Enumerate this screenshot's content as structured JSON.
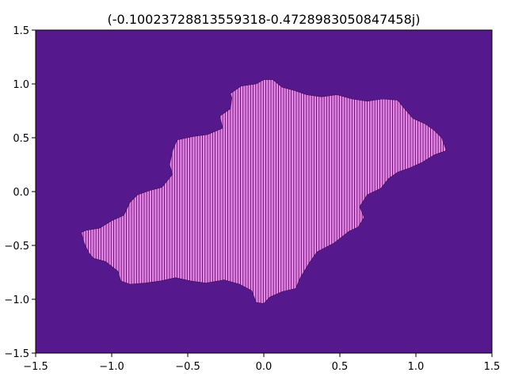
{
  "chart_data": {
    "type": "heatmap",
    "subtype": "julia-set-escape-plot",
    "title": "(-0.10023728813559318-0.4728983050847458j)",
    "xlabel": "",
    "ylabel": "",
    "xlim": [
      -1.5,
      1.5
    ],
    "ylim": [
      -1.5,
      1.5
    ],
    "xticks": [
      -1.5,
      -1.0,
      -0.5,
      0.0,
      0.5,
      1.0,
      1.5
    ],
    "yticks": [
      -1.5,
      -1.0,
      -0.5,
      0.0,
      0.5,
      1.0,
      1.5
    ],
    "xtick_labels": [
      "−1.5",
      "−1.0",
      "−0.5",
      "0.0",
      "0.5",
      "1.0",
      "1.5"
    ],
    "ytick_labels": [
      "−1.5",
      "−1.0",
      "−0.5",
      "0.0",
      "0.5",
      "1.0",
      "1.5"
    ],
    "grid": false,
    "colors": {
      "background": "#56198d",
      "filled_set": "#ee82ee",
      "stripe": "#3a0f4a"
    },
    "set_boundary": [
      [
        -1.2,
        -0.38
      ],
      [
        -1.17,
        -0.36
      ],
      [
        -1.08,
        -0.34
      ],
      [
        -1.0,
        -0.27
      ],
      [
        -0.92,
        -0.22
      ],
      [
        -0.88,
        -0.1
      ],
      [
        -0.83,
        -0.03
      ],
      [
        -0.75,
        0.01
      ],
      [
        -0.67,
        0.04
      ],
      [
        -0.6,
        0.16
      ],
      [
        -0.62,
        0.25
      ],
      [
        -0.6,
        0.38
      ],
      [
        -0.57,
        0.48
      ],
      [
        -0.47,
        0.51
      ],
      [
        -0.37,
        0.53
      ],
      [
        -0.27,
        0.59
      ],
      [
        -0.29,
        0.7
      ],
      [
        -0.22,
        0.77
      ],
      [
        -0.21,
        0.87
      ],
      [
        -0.22,
        0.91
      ],
      [
        -0.15,
        0.98
      ],
      [
        -0.05,
        1.0
      ],
      [
        0.0,
        1.04
      ],
      [
        0.06,
        1.04
      ],
      [
        0.12,
        0.97
      ],
      [
        0.2,
        0.94
      ],
      [
        0.28,
        0.9
      ],
      [
        0.38,
        0.88
      ],
      [
        0.48,
        0.9
      ],
      [
        0.58,
        0.86
      ],
      [
        0.68,
        0.84
      ],
      [
        0.78,
        0.86
      ],
      [
        0.88,
        0.85
      ],
      [
        0.92,
        0.78
      ],
      [
        0.98,
        0.68
      ],
      [
        1.06,
        0.63
      ],
      [
        1.12,
        0.57
      ],
      [
        1.17,
        0.5
      ],
      [
        1.2,
        0.38
      ],
      [
        1.12,
        0.34
      ],
      [
        1.04,
        0.27
      ],
      [
        0.96,
        0.22
      ],
      [
        0.88,
        0.18
      ],
      [
        0.82,
        0.12
      ],
      [
        0.77,
        0.03
      ],
      [
        0.68,
        -0.03
      ],
      [
        0.63,
        -0.14
      ],
      [
        0.66,
        -0.24
      ],
      [
        0.62,
        -0.33
      ],
      [
        0.56,
        -0.37
      ],
      [
        0.46,
        -0.48
      ],
      [
        0.35,
        -0.56
      ],
      [
        0.3,
        -0.66
      ],
      [
        0.24,
        -0.8
      ],
      [
        0.21,
        -0.9
      ],
      [
        0.12,
        -0.93
      ],
      [
        0.04,
        -0.98
      ],
      [
        0.0,
        -1.04
      ],
      [
        -0.05,
        -1.03
      ],
      [
        -0.08,
        -0.92
      ],
      [
        -0.16,
        -0.86
      ],
      [
        -0.26,
        -0.82
      ],
      [
        -0.38,
        -0.85
      ],
      [
        -0.48,
        -0.83
      ],
      [
        -0.58,
        -0.8
      ],
      [
        -0.68,
        -0.83
      ],
      [
        -0.78,
        -0.85
      ],
      [
        -0.88,
        -0.86
      ],
      [
        -0.94,
        -0.83
      ],
      [
        -0.96,
        -0.74
      ],
      [
        -1.04,
        -0.65
      ],
      [
        -1.12,
        -0.62
      ],
      [
        -1.15,
        -0.57
      ],
      [
        -1.18,
        -0.48
      ]
    ]
  }
}
